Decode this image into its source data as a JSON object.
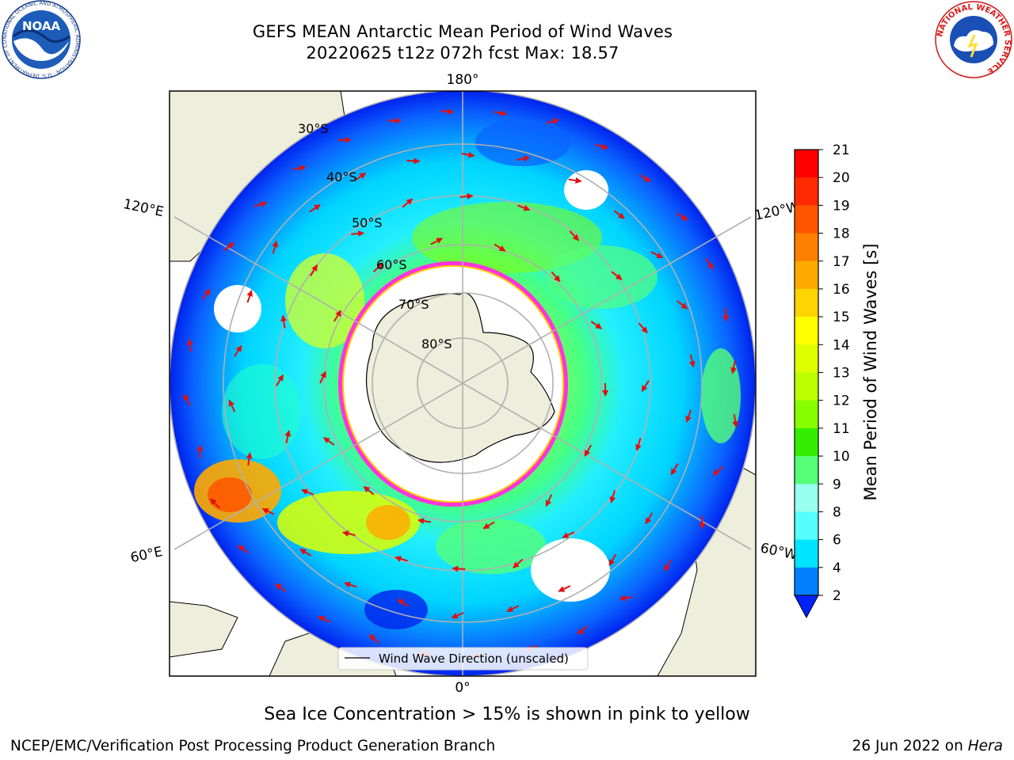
{
  "title_line1": "GEFS MEAN Antarctic Mean Period of Wind Waves",
  "title_line2": "20220625 t12z 072h fcst   Max: 18.57",
  "map": {
    "latitude_labels": [
      "30°S",
      "40°S",
      "50°S",
      "60°S",
      "70°S",
      "80°S"
    ],
    "longitude_labels": {
      "top": "180°",
      "bottom": "0°",
      "upper_left": "120°E",
      "upper_right": "120°W",
      "lower_left": "60°E",
      "lower_right": "60°W"
    },
    "legend_label": "Wind Wave Direction (unscaled)",
    "colors": {
      "land": "#eeeedc",
      "ice_outline": "#ff33dd",
      "vector": "#e01010"
    }
  },
  "colorbar": {
    "label": "Mean Period of Wind Waves [s]",
    "ticks": [
      "21",
      "20",
      "19",
      "18",
      "17",
      "16",
      "15",
      "14",
      "13",
      "12",
      "11",
      "10",
      "9",
      "8",
      "6",
      "4",
      "2"
    ],
    "colors": [
      "#ff0000",
      "#ff2a00",
      "#ff5500",
      "#ff8000",
      "#ffaa00",
      "#ffd400",
      "#ffff00",
      "#ddff00",
      "#bbff00",
      "#88ff00",
      "#33ee00",
      "#55ff77",
      "#99ffee",
      "#55ffff",
      "#00e5ff",
      "#0080ff",
      "#0022ff"
    ]
  },
  "ice_note": "Sea Ice Concentration > 15% is shown in pink to yellow",
  "footer_left": "NCEP/EMC/Verification Post Processing Product Generation Branch",
  "footer_date": "26 Jun 2022 on",
  "footer_host": "Hera",
  "logos": {
    "noaa": {
      "text": "NOAA",
      "ring_text": "NATIONAL OCEANIC AND ATMOSPHERIC ADMINISTRATION · U.S. DEPARTMENT OF COMMERCE"
    },
    "nws": {
      "ring_text": "NATIONAL WEATHER SERVICE"
    }
  }
}
